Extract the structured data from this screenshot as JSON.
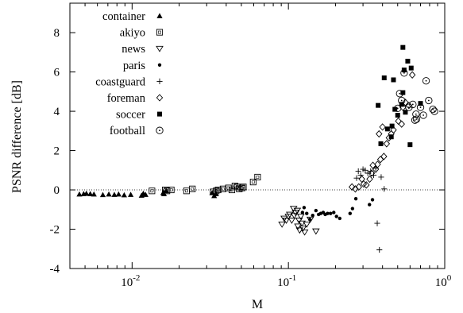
{
  "chart_data": {
    "type": "scatter",
    "xlabel": "M",
    "ylabel": "PSNR difference [dB]",
    "x_scale": "log",
    "xlim": [
      0.004,
      1
    ],
    "ylim": [
      -4,
      9.5
    ],
    "x_ticks": [
      {
        "value": 0.01,
        "base": "10",
        "exp": "-2"
      },
      {
        "value": 0.1,
        "base": "10",
        "exp": "-1"
      },
      {
        "value": 1,
        "base": "10",
        "exp": "0"
      }
    ],
    "y_ticks": [
      -4,
      -2,
      0,
      2,
      4,
      6,
      8
    ],
    "y_tick_labels": [
      "-4",
      "-2",
      "0",
      "2",
      "4",
      "6",
      "8"
    ],
    "reference_line": {
      "y": 0,
      "style": "dotted"
    },
    "grid": false,
    "legend_position": "top-left",
    "series": [
      {
        "name": "container",
        "marker": "filled-triangle",
        "points": [
          [
            0.0046,
            -0.22
          ],
          [
            0.0049,
            -0.2
          ],
          [
            0.0051,
            -0.18
          ],
          [
            0.0054,
            -0.2
          ],
          [
            0.0057,
            -0.22
          ],
          [
            0.0065,
            -0.25
          ],
          [
            0.0071,
            -0.22
          ],
          [
            0.0077,
            -0.24
          ],
          [
            0.0082,
            -0.22
          ],
          [
            0.0089,
            -0.26
          ],
          [
            0.0098,
            -0.24
          ],
          [
            0.0115,
            -0.28
          ],
          [
            0.0118,
            -0.18
          ],
          [
            0.0122,
            -0.24
          ],
          [
            0.0158,
            -0.15
          ],
          [
            0.016,
            -0.2
          ],
          [
            0.0165,
            -0.05
          ],
          [
            0.0325,
            -0.15
          ],
          [
            0.0335,
            -0.3
          ],
          [
            0.0345,
            -0.2
          ]
        ]
      },
      {
        "name": "akiyo",
        "marker": "open-square",
        "points": [
          [
            0.0134,
            -0.05
          ],
          [
            0.0163,
            0.0
          ],
          [
            0.0167,
            -0.05
          ],
          [
            0.0178,
            0.0
          ],
          [
            0.0223,
            -0.05
          ],
          [
            0.0243,
            0.05
          ],
          [
            0.033,
            -0.1
          ],
          [
            0.0345,
            -0.05
          ],
          [
            0.0355,
            0.0
          ],
          [
            0.0382,
            0.05
          ],
          [
            0.0413,
            0.1
          ],
          [
            0.0435,
            0.0
          ],
          [
            0.0455,
            0.2
          ],
          [
            0.047,
            0.15
          ],
          [
            0.0485,
            0.05
          ],
          [
            0.0505,
            0.1
          ],
          [
            0.0515,
            0.15
          ],
          [
            0.0595,
            0.4
          ],
          [
            0.0635,
            0.65
          ]
        ]
      },
      {
        "name": "news",
        "marker": "open-inverted-triangle",
        "points": [
          [
            0.091,
            -1.75
          ],
          [
            0.094,
            -1.45
          ],
          [
            0.097,
            -1.55
          ],
          [
            0.1,
            -1.35
          ],
          [
            0.102,
            -1.25
          ],
          [
            0.105,
            -1.55
          ],
          [
            0.108,
            -0.95
          ],
          [
            0.109,
            -1.3
          ],
          [
            0.111,
            -1.15
          ],
          [
            0.114,
            -1.05
          ],
          [
            0.115,
            -1.85
          ],
          [
            0.117,
            -1.55
          ],
          [
            0.118,
            -2.05
          ],
          [
            0.12,
            -1.35
          ],
          [
            0.122,
            -1.7
          ],
          [
            0.124,
            -1.95
          ],
          [
            0.127,
            -2.15
          ],
          [
            0.131,
            -1.75
          ],
          [
            0.138,
            -1.5
          ],
          [
            0.15,
            -2.1
          ]
        ]
      },
      {
        "name": "paris",
        "marker": "filled-circle",
        "points": [
          [
            0.123,
            -1.15
          ],
          [
            0.126,
            -0.9
          ],
          [
            0.131,
            -1.2
          ],
          [
            0.137,
            -1.5
          ],
          [
            0.143,
            -1.3
          ],
          [
            0.15,
            -1.05
          ],
          [
            0.156,
            -1.25
          ],
          [
            0.161,
            -1.2
          ],
          [
            0.167,
            -1.15
          ],
          [
            0.172,
            -1.25
          ],
          [
            0.178,
            -1.2
          ],
          [
            0.186,
            -1.2
          ],
          [
            0.195,
            -1.15
          ],
          [
            0.203,
            -1.35
          ],
          [
            0.213,
            -1.45
          ],
          [
            0.248,
            -1.2
          ],
          [
            0.257,
            -0.95
          ],
          [
            0.27,
            -0.45
          ],
          [
            0.33,
            -0.75
          ],
          [
            0.345,
            -0.5
          ]
        ]
      },
      {
        "name": "coastguard",
        "marker": "plus",
        "points": [
          [
            0.273,
            0.6
          ],
          [
            0.28,
            0.95
          ],
          [
            0.29,
            0.75
          ],
          [
            0.3,
            1.05
          ],
          [
            0.31,
            1.0
          ],
          [
            0.322,
            0.85
          ],
          [
            0.336,
            0.95
          ],
          [
            0.351,
            0.75
          ],
          [
            0.362,
            1.1
          ],
          [
            0.37,
            -1.7
          ],
          [
            0.382,
            -3.05
          ],
          [
            0.392,
            0.65
          ],
          [
            0.41,
            0.05
          ]
        ]
      },
      {
        "name": "foreman",
        "marker": "open-diamond",
        "points": [
          [
            0.255,
            0.15
          ],
          [
            0.268,
            0.05
          ],
          [
            0.282,
            0.15
          ],
          [
            0.295,
            0.55
          ],
          [
            0.303,
            0.3
          ],
          [
            0.315,
            0.25
          ],
          [
            0.331,
            0.55
          ],
          [
            0.341,
            0.85
          ],
          [
            0.347,
            1.25
          ],
          [
            0.362,
            1.05
          ],
          [
            0.372,
            1.3
          ],
          [
            0.388,
            1.55
          ],
          [
            0.408,
            1.7
          ],
          [
            0.425,
            2.35
          ],
          [
            0.44,
            2.65
          ],
          [
            0.455,
            2.85
          ],
          [
            0.47,
            3.05
          ],
          [
            0.505,
            3.5
          ],
          [
            0.53,
            3.35
          ],
          [
            0.54,
            4.2
          ],
          [
            0.56,
            4.45
          ],
          [
            0.59,
            4.3
          ],
          [
            0.62,
            5.85
          ],
          [
            0.38,
            2.85
          ],
          [
            0.4,
            3.2
          ]
        ]
      },
      {
        "name": "soccer",
        "marker": "filled-square",
        "points": [
          [
            0.375,
            4.3
          ],
          [
            0.39,
            2.35
          ],
          [
            0.41,
            5.7
          ],
          [
            0.43,
            3.1
          ],
          [
            0.455,
            2.7
          ],
          [
            0.46,
            3.25
          ],
          [
            0.47,
            5.6
          ],
          [
            0.48,
            4.1
          ],
          [
            0.5,
            3.8
          ],
          [
            0.53,
            4.35
          ],
          [
            0.54,
            4.95
          ],
          [
            0.54,
            7.25
          ],
          [
            0.55,
            6.1
          ],
          [
            0.56,
            3.95
          ],
          [
            0.58,
            6.55
          ],
          [
            0.6,
            2.3
          ],
          [
            0.61,
            6.2
          ],
          [
            0.7,
            4.4
          ]
        ]
      },
      {
        "name": "football",
        "marker": "open-circle",
        "points": [
          [
            0.5,
            4.15
          ],
          [
            0.515,
            4.9
          ],
          [
            0.53,
            4.55
          ],
          [
            0.55,
            5.95
          ],
          [
            0.59,
            4.2
          ],
          [
            0.625,
            4.35
          ],
          [
            0.645,
            3.55
          ],
          [
            0.655,
            3.85
          ],
          [
            0.66,
            3.6
          ],
          [
            0.7,
            4.2
          ],
          [
            0.73,
            3.8
          ],
          [
            0.76,
            5.55
          ],
          [
            0.79,
            4.55
          ],
          [
            0.84,
            4.1
          ],
          [
            0.86,
            4.0
          ]
        ]
      }
    ]
  }
}
